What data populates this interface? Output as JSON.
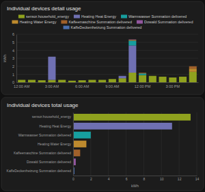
{
  "chart_data": [
    {
      "type": "bar",
      "title": "Individual devices detail usage",
      "stacked": true,
      "legend": "top",
      "grid": true,
      "y_label": "kWh",
      "categories": [
        "12:00 AM",
        null,
        null,
        "3:00 AM",
        null,
        null,
        "6:00 AM",
        null,
        null,
        "9:00 AM",
        null,
        null,
        "12:00 PM",
        null,
        null,
        "3:00 PM",
        null,
        null
      ],
      "series": [
        {
          "name": "sensor.household_energy",
          "color": "#8fa11e",
          "values": [
            0.3,
            0.3,
            0.25,
            0.3,
            0.3,
            0.2,
            0.25,
            0.3,
            0.3,
            0.4,
            0.5,
            1.2,
            0.9,
            0.8,
            0.7,
            0.6,
            0.7,
            1.3
          ]
        },
        {
          "name": "Heating Heat Energy",
          "color": "#6f70b2",
          "values": [
            0,
            0,
            0,
            2.9,
            0,
            0,
            0,
            0,
            0,
            0,
            0.3,
            3.4,
            0,
            0,
            0,
            0,
            0,
            0
          ]
        },
        {
          "name": "Warmwasser Summation delivered",
          "color": "#179e9e",
          "values": [
            0,
            0,
            0,
            0,
            0,
            0,
            0,
            0,
            0,
            0,
            0,
            0.6,
            0.2,
            0,
            0,
            0,
            0,
            0
          ]
        },
        {
          "name": "Heating Water Energy",
          "color": "#bd8a2e",
          "values": [
            0,
            0,
            0,
            0,
            0,
            0,
            0,
            0,
            0,
            0,
            0,
            0.1,
            0,
            0,
            0,
            0,
            0,
            0.4
          ]
        },
        {
          "name": "Kaffeemaschine Summation delivered",
          "color": "#a0602a",
          "values": [
            0,
            0,
            0,
            0,
            0,
            0,
            0,
            0,
            0,
            0,
            0,
            0,
            0.1,
            0,
            0,
            0,
            0,
            0.3
          ]
        },
        {
          "name": "Dowald Summation delivered",
          "color": "#93579f",
          "values": [
            0,
            0,
            0,
            0,
            0,
            0,
            0,
            0,
            0,
            0,
            0,
            0.05,
            0,
            0,
            0,
            0,
            0,
            0
          ]
        },
        {
          "name": "KaffeDeckenheizung Summation delivered",
          "color": "#4a6fae",
          "values": [
            0,
            0,
            0,
            0,
            0,
            0,
            0,
            0,
            0,
            0,
            0,
            0,
            0,
            0,
            0,
            0,
            0,
            0
          ]
        }
      ],
      "ylim": [
        0,
        6
      ],
      "yticks": [
        0,
        1,
        2,
        3,
        4,
        5,
        6
      ]
    },
    {
      "type": "bar",
      "title": "Individual devices total usage",
      "orientation": "horizontal",
      "grid": true,
      "x_label": "kWh",
      "categories": [
        "sensor.household_energy",
        "Heating Heat Energy",
        "Warmwasser Summation delivered",
        "Heating Water Energy",
        "Kaffeemaschine Summation delivered",
        "Dowald Summation delivered",
        "KaffeDeckenheizung Summation delivered"
      ],
      "values": [
        13.3,
        11.2,
        2.0,
        1.5,
        0.8,
        0.3,
        0.15
      ],
      "colors": [
        "#8fa11e",
        "#6f70b2",
        "#179e9e",
        "#bd8a2e",
        "#a0602a",
        "#93579f",
        "#4a6fae"
      ],
      "xlim": [
        0,
        14
      ],
      "xticks": [
        0,
        2,
        4,
        6,
        8,
        10,
        12,
        14
      ]
    }
  ]
}
